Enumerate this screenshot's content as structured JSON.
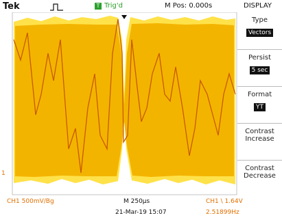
{
  "header": {
    "brand": "Tek",
    "trigger_icon": "T",
    "trigger_status": "Trig'd",
    "position": "M Pos: 0.000s",
    "menu_title": "DISPLAY"
  },
  "menu": [
    {
      "label": "Type",
      "value": "Vectors"
    },
    {
      "label": "Persist",
      "value": "5 sec"
    },
    {
      "label": "Format",
      "value": "YT"
    },
    {
      "label": "Contrast",
      "value": "Increase"
    },
    {
      "label": "Contrast",
      "value": "Decrease"
    }
  ],
  "channel_marker": "1",
  "footer": {
    "channel": "CH1 500mV/Bg",
    "timebase": "M 250µs",
    "trigger": "CH1 \\ 1.64V",
    "date": "21-Mar-19 15:07",
    "frequency": "2.51899Hz"
  }
}
